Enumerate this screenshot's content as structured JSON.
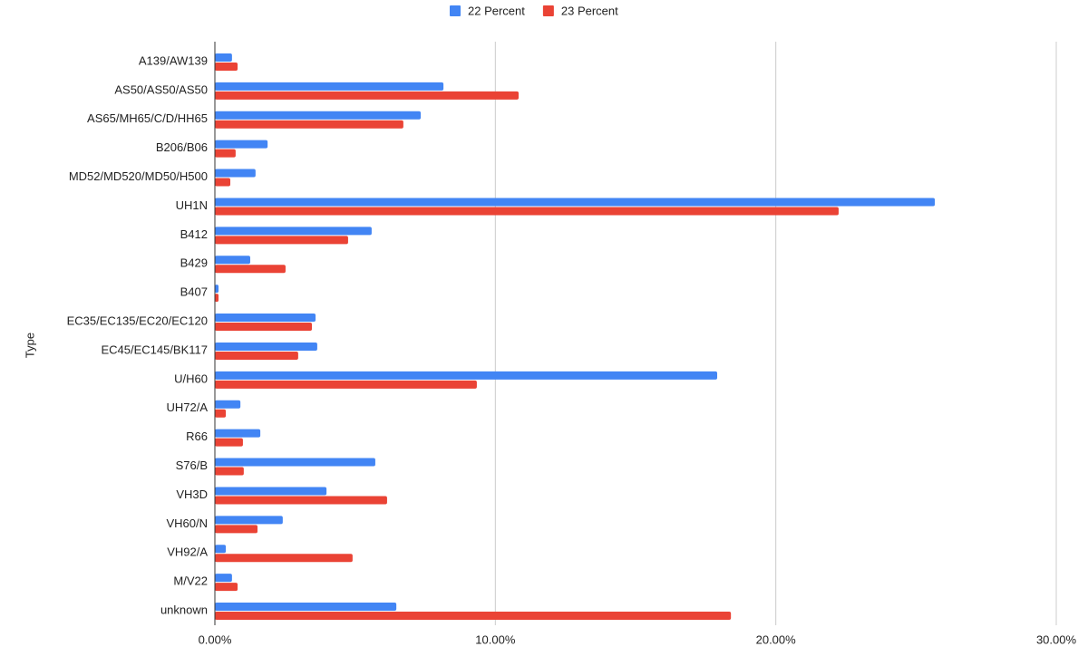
{
  "chart_data": {
    "type": "hbar",
    "y_label": "Type",
    "categories": [
      "A139/AW139",
      "AS50/AS50/AS50",
      "AS65/MH65/C/D/HH65",
      "B206/B06",
      "MD52/MD520/MD50/H500",
      "UH1N",
      "B412",
      "B429",
      "B407",
      "EC35/EC135/EC20/EC120",
      "EC45/EC145/BK117",
      "U/H60",
      "UH72/A",
      "R66",
      "S76/B",
      "VH3D",
      "VH60/N",
      "VH92/A",
      "M/V22",
      "unknown"
    ],
    "series": [
      {
        "name": "22 Percent",
        "color": "#4285f4",
        "values": [
          0.61,
          8.15,
          7.34,
          1.88,
          1.45,
          25.67,
          5.59,
          1.26,
          0.13,
          3.59,
          3.65,
          17.91,
          0.91,
          1.62,
          5.72,
          3.98,
          2.42,
          0.39,
          0.61,
          6.47
        ]
      },
      {
        "name": "23 Percent",
        "color": "#ea4335",
        "values": [
          0.81,
          10.83,
          6.72,
          0.74,
          0.55,
          22.24,
          4.75,
          2.52,
          0.13,
          3.46,
          2.97,
          9.34,
          0.39,
          1.0,
          1.03,
          6.14,
          1.52,
          4.91,
          0.81,
          18.4
        ]
      }
    ],
    "xlim": [
      0,
      30
    ],
    "xticks": [
      {
        "value": 0,
        "label": "0.00%"
      },
      {
        "value": 10,
        "label": "10.00%"
      },
      {
        "value": 20,
        "label": "20.00%"
      },
      {
        "value": 30,
        "label": "30.00%"
      }
    ],
    "grid": true,
    "legend": "top"
  }
}
